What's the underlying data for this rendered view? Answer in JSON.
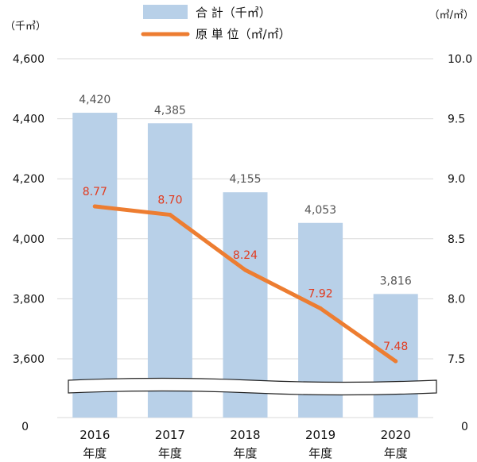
{
  "chart_data": {
    "type": "bar",
    "categories": [
      {
        "year": "2016",
        "suffix": "年度"
      },
      {
        "year": "2017",
        "suffix": "年度"
      },
      {
        "year": "2018",
        "suffix": "年度"
      },
      {
        "year": "2019",
        "suffix": "年度"
      },
      {
        "year": "2020",
        "suffix": "年度"
      }
    ],
    "series": [
      {
        "name": "合 計（千㎥）",
        "type": "bar",
        "axis": "left",
        "color": "#b8d0e8",
        "values": [
          4420,
          4385,
          4155,
          4053,
          3816
        ],
        "labels": [
          "4,420",
          "4,385",
          "4,155",
          "4,053",
          "3,816"
        ]
      },
      {
        "name": "原 単 位（㎥/㎡）",
        "type": "line",
        "axis": "right",
        "color": "#ed7d31",
        "label_color": "#e23b1f",
        "values": [
          8.77,
          8.7,
          8.24,
          7.92,
          7.48
        ],
        "labels": [
          "8.77",
          "8.70",
          "8.24",
          "7.92",
          "7.48"
        ]
      }
    ],
    "left_axis": {
      "unit": "（千㎥）",
      "ylim": [
        3600,
        4600
      ],
      "ticks": [
        {
          "value": 3600,
          "label": "3,600"
        },
        {
          "value": 3800,
          "label": "3,800"
        },
        {
          "value": 4000,
          "label": "4,000"
        },
        {
          "value": 4200,
          "label": "4,200"
        },
        {
          "value": 4400,
          "label": "4,400"
        },
        {
          "value": 4600,
          "label": "4,600"
        }
      ],
      "base_label": "0"
    },
    "right_axis": {
      "unit": "（㎥/㎡）",
      "ylim": [
        7.5,
        10.0
      ],
      "ticks": [
        {
          "value": 7.5,
          "label": "7.5"
        },
        {
          "value": 8.0,
          "label": "8.0"
        },
        {
          "value": 8.5,
          "label": "8.5"
        },
        {
          "value": 9.0,
          "label": "9.0"
        },
        {
          "value": 9.5,
          "label": "9.5"
        },
        {
          "value": 10.0,
          "label": "10.0"
        }
      ],
      "base_label": "0"
    },
    "grid": true,
    "axis_break": true,
    "legend_position": "top-center"
  }
}
